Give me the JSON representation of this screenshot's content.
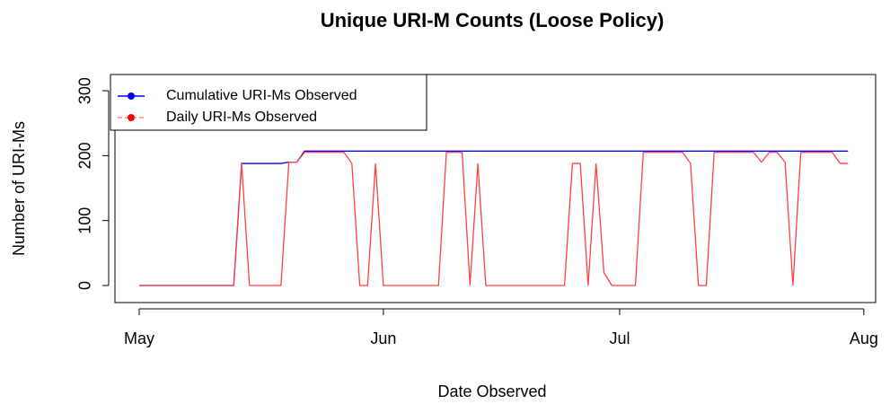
{
  "chart_data": {
    "type": "line",
    "title": "Unique URI-M Counts (Loose Policy)",
    "xlabel": "Date Observed",
    "ylabel": "Number of URI-Ms",
    "x": [
      0,
      1,
      2,
      3,
      4,
      5,
      6,
      7,
      8,
      9,
      10,
      11,
      12,
      13,
      14,
      15,
      16,
      17,
      18,
      19,
      20,
      21,
      22,
      23,
      24,
      25,
      26,
      27,
      28,
      29,
      30,
      31,
      32,
      33,
      34,
      35,
      36,
      37,
      38,
      39,
      40,
      41,
      42,
      43,
      44,
      45,
      46,
      47,
      48,
      49,
      50,
      51,
      52,
      53,
      54,
      55,
      56,
      57,
      58,
      59,
      60,
      61,
      62,
      63,
      64,
      65,
      66,
      67,
      68,
      69,
      70,
      71,
      72,
      73,
      74,
      75,
      76,
      77,
      78,
      79,
      80,
      81,
      82,
      83,
      84,
      85,
      86,
      87,
      88,
      89,
      90
    ],
    "series": [
      {
        "name": "Cumulative URI-Ms Observed",
        "color": "#0000ff",
        "dash": false,
        "values": [
          0,
          0,
          0,
          0,
          0,
          0,
          0,
          0,
          0,
          0,
          0,
          0,
          0,
          188,
          188,
          188,
          188,
          188,
          188,
          190,
          190,
          207,
          207,
          207,
          207,
          207,
          207,
          207,
          207,
          207,
          207,
          207,
          207,
          207,
          207,
          207,
          207,
          207,
          207,
          207,
          207,
          207,
          207,
          207,
          207,
          207,
          207,
          207,
          207,
          207,
          207,
          207,
          207,
          207,
          207,
          207,
          207,
          207,
          207,
          207,
          207,
          207,
          207,
          207,
          207,
          207,
          207,
          207,
          207,
          207,
          207,
          207,
          207,
          207,
          207,
          207,
          207,
          207,
          207,
          207,
          207,
          207,
          207,
          207,
          207,
          207,
          207,
          207,
          207,
          207,
          207
        ]
      },
      {
        "name": "Daily URI-Ms Observed",
        "color": "#ff4040",
        "dash": true,
        "values": [
          0,
          0,
          0,
          0,
          0,
          0,
          0,
          0,
          0,
          0,
          0,
          0,
          0,
          188,
          0,
          0,
          0,
          0,
          0,
          190,
          190,
          205,
          205,
          205,
          205,
          205,
          205,
          188,
          0,
          0,
          188,
          0,
          0,
          0,
          0,
          0,
          0,
          0,
          0,
          205,
          205,
          205,
          0,
          188,
          0,
          0,
          0,
          0,
          0,
          0,
          0,
          0,
          0,
          0,
          0,
          188,
          188,
          0,
          188,
          20,
          0,
          0,
          0,
          0,
          205,
          205,
          205,
          205,
          205,
          205,
          188,
          0,
          0,
          205,
          205,
          205,
          205,
          205,
          205,
          190,
          205,
          205,
          190,
          0,
          205,
          205,
          205,
          205,
          205,
          188,
          188
        ]
      }
    ],
    "xlim": [
      -3.08,
      93.5
    ],
    "xticks": [
      {
        "value": 0,
        "label": "May"
      },
      {
        "value": 31,
        "label": "Jun"
      },
      {
        "value": 61,
        "label": "Jul"
      },
      {
        "value": 92,
        "label": "Aug"
      }
    ],
    "ylim": [
      -26.3,
      325
    ],
    "yticks": [
      0,
      100,
      200,
      300
    ],
    "legend": "topleft"
  }
}
